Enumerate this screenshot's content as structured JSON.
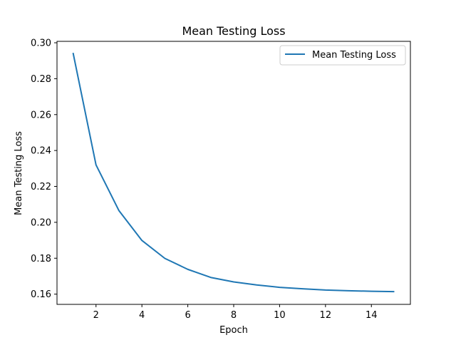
{
  "chart_data": {
    "type": "line",
    "title": "Mean Testing Loss",
    "xlabel": "Epoch",
    "ylabel": "Mean Testing Loss",
    "xlim": [
      0.3,
      15.7
    ],
    "ylim": [
      0.1543,
      0.3008
    ],
    "x_ticks": [
      2,
      4,
      6,
      8,
      10,
      12,
      14
    ],
    "y_ticks": [
      0.16,
      0.18,
      0.2,
      0.22,
      0.24,
      0.26,
      0.28,
      0.3
    ],
    "x_tick_labels": [
      "2",
      "4",
      "6",
      "8",
      "10",
      "12",
      "14"
    ],
    "y_tick_labels": [
      "0.16",
      "0.18",
      "0.20",
      "0.22",
      "0.24",
      "0.26",
      "0.28",
      "0.30"
    ],
    "grid": false,
    "legend_position": "upper right",
    "series": [
      {
        "name": "Mean Testing Loss",
        "color": "#1f77b4",
        "x": [
          1,
          2,
          3,
          4,
          5,
          6,
          7,
          8,
          9,
          10,
          11,
          12,
          13,
          14,
          15
        ],
        "y": [
          0.2944,
          0.232,
          0.2065,
          0.1899,
          0.1799,
          0.1738,
          0.1693,
          0.1668,
          0.1651,
          0.1638,
          0.163,
          0.1623,
          0.1619,
          0.1616,
          0.1614
        ]
      }
    ]
  }
}
